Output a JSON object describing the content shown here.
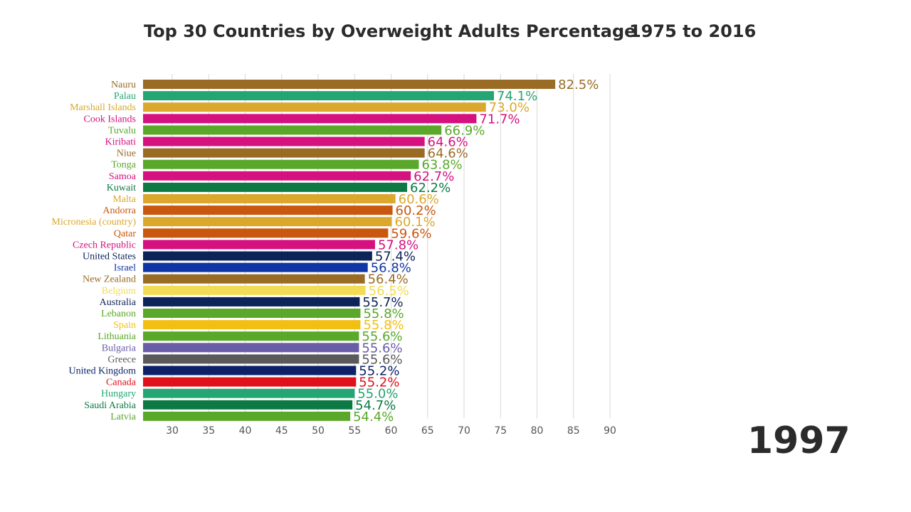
{
  "header": {
    "title": "Top 30 Countries by Overweight Adults Percentage",
    "subtitle": "1975 to 2016"
  },
  "year": "1997",
  "chart_data": {
    "type": "bar",
    "orientation": "horizontal",
    "title": "Top 30 Countries by Overweight Adults Percentage",
    "subtitle": "1975 to 2016",
    "xlim": [
      26,
      90
    ],
    "xticks": [
      30,
      35,
      40,
      45,
      50,
      55,
      60,
      65,
      70,
      75,
      80,
      85,
      90
    ],
    "grid": true,
    "categories": [
      "Nauru",
      "Palau",
      "Marshall Islands",
      "Cook Islands",
      "Tuvalu",
      "Kiribati",
      "Niue",
      "Tonga",
      "Samoa",
      "Kuwait",
      "Malta",
      "Andorra",
      "Micronesia (country)",
      "Qatar",
      "Czech Republic",
      "United States",
      "Israel",
      "New Zealand",
      "Belgium",
      "Australia",
      "Lebanon",
      "Spain",
      "Lithuania",
      "Bulgaria",
      "Greece",
      "United Kingdom",
      "Canada",
      "Hungary",
      "Saudi Arabia",
      "Latvia"
    ],
    "values": [
      82.5,
      74.1,
      73.0,
      71.7,
      66.9,
      64.6,
      64.6,
      63.8,
      62.7,
      62.2,
      60.6,
      60.2,
      60.1,
      59.6,
      57.8,
      57.4,
      56.8,
      56.4,
      56.5,
      55.7,
      55.8,
      55.8,
      55.6,
      55.6,
      55.6,
      55.2,
      55.2,
      55.0,
      54.7,
      54.4
    ],
    "value_labels": [
      "82.5%",
      "74.1%",
      "73.0%",
      "71.7%",
      "66.9%",
      "64.6%",
      "64.6%",
      "63.8%",
      "62.7%",
      "62.2%",
      "60.6%",
      "60.2%",
      "60.1%",
      "59.6%",
      "57.8%",
      "57.4%",
      "56.8%",
      "56.4%",
      "56.5%",
      "55.7%",
      "55.8%",
      "55.8%",
      "55.6%",
      "55.6%",
      "55.6%",
      "55.2%",
      "55.2%",
      "55.0%",
      "54.7%",
      "54.4%"
    ],
    "colors": [
      "#9a6b25",
      "#25a573",
      "#dba82d",
      "#d51180",
      "#5aa82a",
      "#d51180",
      "#9a6b25",
      "#5aa82a",
      "#d51180",
      "#0d7a45",
      "#dba82d",
      "#c9570f",
      "#dba82d",
      "#c9570f",
      "#d51180",
      "#0d2459",
      "#1036a6",
      "#9a6b25",
      "#f3dc55",
      "#0d2459",
      "#5aa82a",
      "#f2c014",
      "#5aa82a",
      "#6a5da7",
      "#5a5a5a",
      "#0d2266",
      "#e1111a",
      "#25a573",
      "#0d7a45",
      "#5aa82a"
    ],
    "year": "1997"
  }
}
